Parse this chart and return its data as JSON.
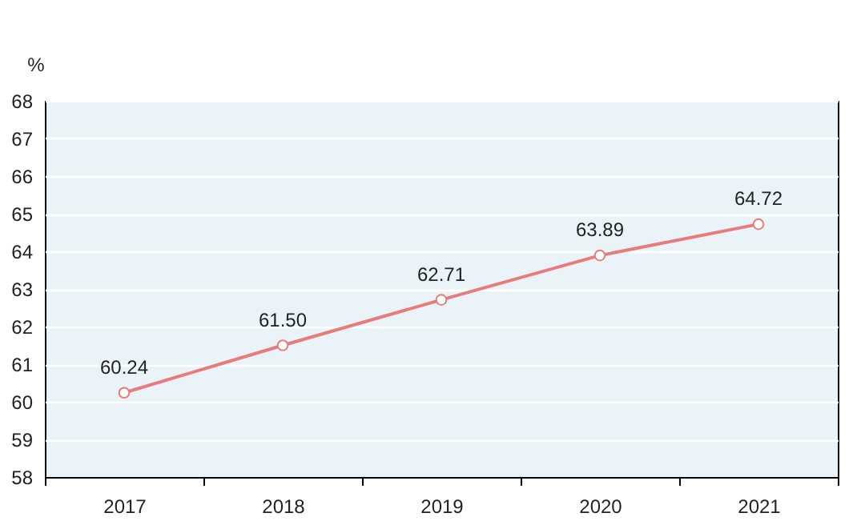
{
  "chart_data": {
    "type": "line",
    "ylabel": "%",
    "categories": [
      "2017",
      "2018",
      "2019",
      "2020",
      "2021"
    ],
    "series": [
      {
        "color": "#e87b7b",
        "values": [
          60.24,
          61.5,
          62.71,
          63.89,
          64.72
        ],
        "value_labels": [
          "60.24",
          "61.50",
          "62.71",
          "63.89",
          "64.72"
        ]
      }
    ],
    "ylim": [
      58,
      68
    ],
    "yticks": [
      58,
      59,
      60,
      61,
      62,
      63,
      64,
      65,
      66,
      67,
      68
    ],
    "grid": "y",
    "marker": "circle",
    "line_style": "solid"
  }
}
